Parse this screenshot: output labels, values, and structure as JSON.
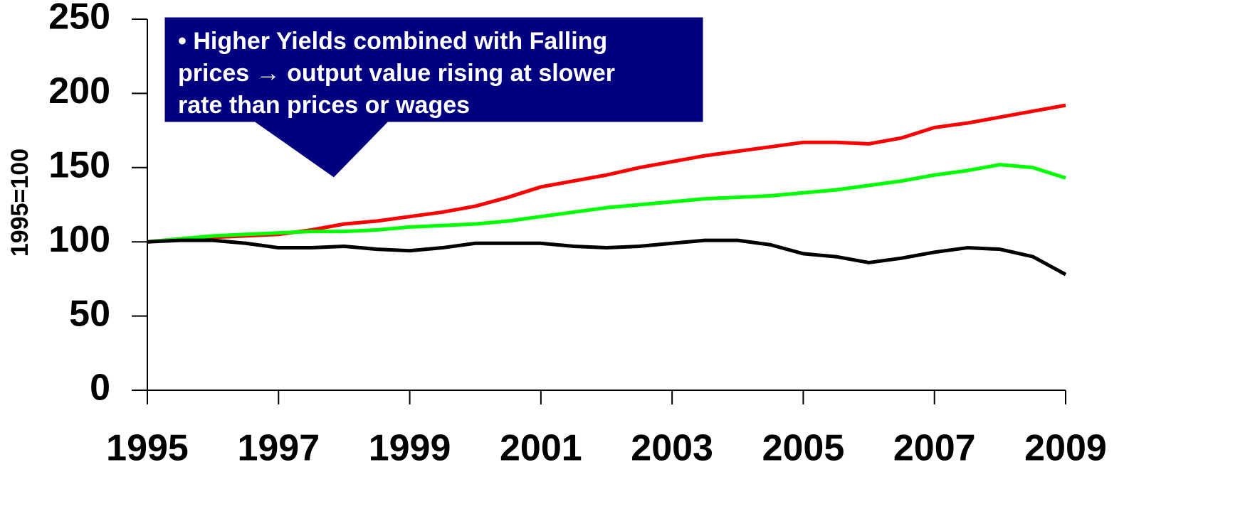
{
  "chart_data": {
    "type": "line",
    "ylabel": "1995=100",
    "annotation_lines": [
      "• Higher Yields combined with Falling",
      "prices → output value rising at slower",
      "rate than prices or wages"
    ],
    "x": [
      1995,
      1995.5,
      1996,
      1996.5,
      1997,
      1997.5,
      1998,
      1998.5,
      1999,
      1999.5,
      2000,
      2000.5,
      2001,
      2001.5,
      2002,
      2002.5,
      2003,
      2003.5,
      2004,
      2004.5,
      2005,
      2005.5,
      2006,
      2006.5,
      2007,
      2007.5,
      2008,
      2008.5,
      2009
    ],
    "series": [
      {
        "color": "#ff0000",
        "values": [
          100,
          102,
          103,
          104,
          105,
          108,
          112,
          114,
          117,
          120,
          124,
          130,
          137,
          141,
          145,
          150,
          154,
          158,
          161,
          164,
          167,
          167,
          166,
          170,
          177,
          180,
          184,
          188,
          192
        ]
      },
      {
        "color": "#00ff00",
        "values": [
          100,
          102,
          104,
          105,
          106,
          107,
          107,
          108,
          110,
          111,
          112,
          114,
          117,
          120,
          123,
          125,
          127,
          129,
          130,
          131,
          133,
          135,
          138,
          141,
          145,
          148,
          152,
          150,
          143
        ]
      },
      {
        "color": "#000000",
        "values": [
          100,
          101,
          101,
          99,
          96,
          96,
          97,
          95,
          94,
          96,
          99,
          99,
          99,
          97,
          96,
          97,
          99,
          101,
          101,
          98,
          92,
          90,
          86,
          89,
          93,
          96,
          95,
          90,
          78
        ]
      }
    ],
    "xlim": [
      1995,
      2009
    ],
    "xticks": [
      1995,
      1997,
      1999,
      2001,
      2003,
      2005,
      2007,
      2009
    ],
    "ylim": [
      0,
      250
    ],
    "yticks": [
      0,
      50,
      100,
      150,
      200,
      250
    ]
  }
}
